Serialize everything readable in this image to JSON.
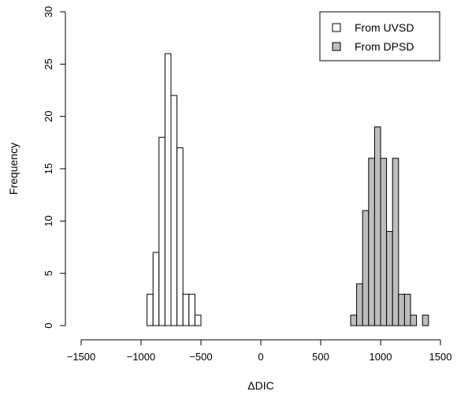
{
  "chart_data": {
    "type": "bar",
    "subtype": "histogram",
    "title": "",
    "xlabel": "ΔDIC",
    "ylabel": "Frequency",
    "xlim": [
      -1500,
      1500
    ],
    "ylim": [
      0,
      30
    ],
    "x_ticks": [
      -1500,
      -1000,
      -500,
      0,
      500,
      1000,
      1500
    ],
    "y_ticks": [
      0,
      5,
      10,
      15,
      20,
      25,
      30
    ],
    "x_tick_labels": [
      "−1500",
      "−1000",
      "−500",
      "0",
      "500",
      "1000",
      "1500"
    ],
    "y_tick_labels": [
      "0",
      "5",
      "10",
      "15",
      "20",
      "25",
      "30"
    ],
    "bin_width": 50,
    "grid": false,
    "legend_position": "top-right",
    "series": [
      {
        "name": "From UVSD",
        "color": "#ffffff",
        "bins": [
          {
            "x0": -950,
            "x1": -900,
            "count": 3
          },
          {
            "x0": -900,
            "x1": -850,
            "count": 7
          },
          {
            "x0": -850,
            "x1": -800,
            "count": 18
          },
          {
            "x0": -800,
            "x1": -750,
            "count": 26
          },
          {
            "x0": -750,
            "x1": -700,
            "count": 22
          },
          {
            "x0": -700,
            "x1": -650,
            "count": 17
          },
          {
            "x0": -650,
            "x1": -600,
            "count": 3
          },
          {
            "x0": -600,
            "x1": -550,
            "count": 3
          },
          {
            "x0": -550,
            "x1": -500,
            "count": 1
          }
        ]
      },
      {
        "name": "From DPSD",
        "color": "#bebebe",
        "bins": [
          {
            "x0": 750,
            "x1": 800,
            "count": 1
          },
          {
            "x0": 800,
            "x1": 850,
            "count": 4
          },
          {
            "x0": 850,
            "x1": 900,
            "count": 11
          },
          {
            "x0": 900,
            "x1": 950,
            "count": 16
          },
          {
            "x0": 950,
            "x1": 1000,
            "count": 19
          },
          {
            "x0": 1000,
            "x1": 1050,
            "count": 16
          },
          {
            "x0": 1050,
            "x1": 1100,
            "count": 9
          },
          {
            "x0": 1100,
            "x1": 1150,
            "count": 16
          },
          {
            "x0": 1150,
            "x1": 1200,
            "count": 3
          },
          {
            "x0": 1200,
            "x1": 1250,
            "count": 3
          },
          {
            "x0": 1250,
            "x1": 1300,
            "count": 1
          },
          {
            "x0": 1300,
            "x1": 1350,
            "count": 0
          },
          {
            "x0": 1350,
            "x1": 1400,
            "count": 1
          }
        ]
      }
    ]
  }
}
